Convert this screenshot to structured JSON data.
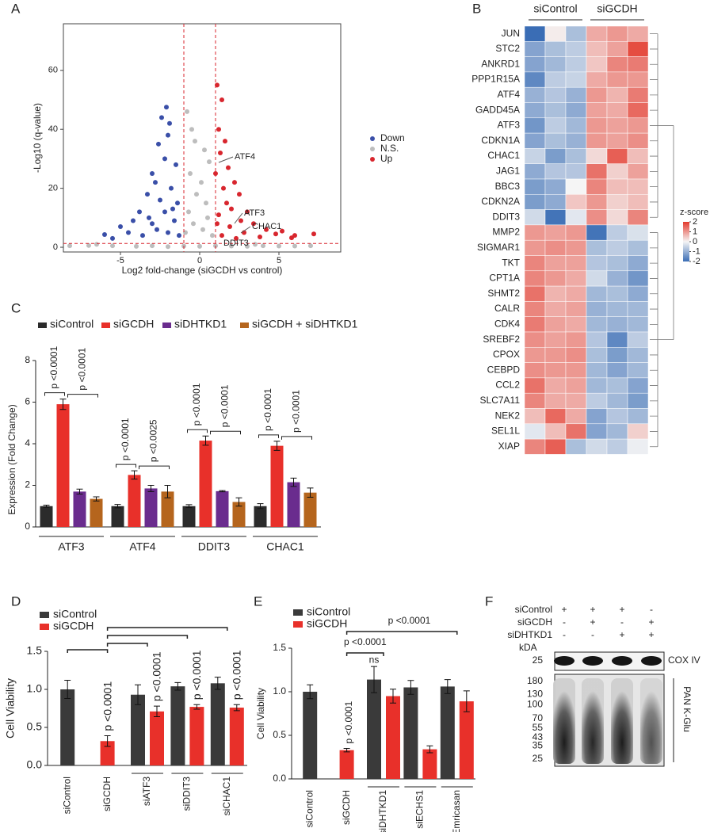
{
  "chart_data": [
    {
      "panel": "A",
      "type": "scatter",
      "xlabel": "Log2 fold-change (siGCDH vs control)",
      "ylabel": "-Log10 (q-value)",
      "xlim": [
        -8.6,
        8.9
      ],
      "ylim": [
        -1.6,
        75.8
      ],
      "xticks": [
        -5,
        0,
        5
      ],
      "yticks": [
        0,
        20,
        40,
        60
      ],
      "vlines": [
        -1,
        1
      ],
      "hline": 1.3,
      "series": [
        {
          "name": "Down",
          "color": "#3a4fa8",
          "x": [
            -2.1,
            -2.4,
            -1.9,
            -2.0,
            -2.6,
            -2.2,
            -1.5,
            -3.0,
            -2.8,
            -1.8,
            -3.3,
            -2.5,
            -1.4,
            -3.8,
            -2.2,
            -4.2,
            -3.0,
            -1.6,
            -5.0,
            -6.0,
            -4.5,
            -3.6,
            -2.0,
            -5.5,
            -1.3,
            -2.7,
            -3.2,
            -1.7
          ],
          "values": [
            47.5,
            44,
            42,
            38,
            35,
            30,
            28,
            25,
            22,
            20,
            18,
            16,
            15,
            12,
            12,
            9,
            8,
            9,
            7,
            4.3,
            5,
            4,
            5,
            3,
            4,
            6,
            10,
            13
          ]
        },
        {
          "name": "N.S.",
          "color": "#bdbdbd",
          "x": [
            -0.8,
            -0.5,
            -0.3,
            0.3,
            0.6,
            -0.6,
            0.1,
            -0.2,
            0.4,
            -0.7,
            0.5,
            -0.4,
            0.2,
            -0.9,
            0.8,
            -8.2,
            -7,
            -5.5,
            -4,
            -3,
            -2,
            -1,
            0,
            1,
            2,
            3,
            4,
            5,
            6,
            7,
            -6.5,
            3.5
          ],
          "values": [
            46,
            40,
            36,
            33,
            29,
            25,
            22,
            18,
            15,
            12,
            10,
            8,
            6,
            5,
            4,
            0.5,
            0.6,
            0.5,
            0.3,
            0.5,
            0.2,
            0.4,
            0.3,
            0.5,
            0.4,
            0.3,
            0.5,
            0.4,
            0.4,
            0.5,
            1.0,
            1.0
          ]
        },
        {
          "name": "Up",
          "color": "#d8262e",
          "x": [
            1.1,
            1.4,
            1.2,
            1.6,
            1.3,
            1.8,
            1.0,
            2.2,
            1.5,
            2.5,
            1.7,
            2.0,
            3.0,
            1.2,
            2.6,
            3.4,
            1.9,
            4.2,
            2.8,
            5.2,
            4.8,
            6.0,
            7.2,
            3.8,
            1.4,
            2.3,
            5.8,
            1.1
          ],
          "values": [
            55,
            50,
            40,
            36,
            32,
            27,
            25,
            22,
            20,
            18,
            15,
            13,
            12,
            11,
            9,
            8,
            7,
            6,
            5,
            5.5,
            4.5,
            4,
            4.5,
            3.5,
            4,
            3,
            3.2,
            8
          ]
        }
      ],
      "annotations": [
        "ATF4",
        "ATF3",
        "CHAC1",
        "DDIT3"
      ]
    },
    {
      "panel": "B",
      "type": "heatmap",
      "column_groups": [
        "siControl",
        "siGCDH"
      ],
      "rows": [
        "JUN",
        "STC2",
        "ANKRD1",
        "PPP1R15A",
        "ATF4",
        "GADD45A",
        "ATF3",
        "CDKN1A",
        "CHAC1",
        "JAG1",
        "BBC3",
        "CDKN2A",
        "DDIT3",
        "MMP2",
        "SIGMAR1",
        "TKT",
        "CPT1A",
        "SHMT2",
        "CALR",
        "CDK4",
        "SREBF2",
        "CPOX",
        "CEBPD",
        "CCL2",
        "SLC7A11",
        "NEK2",
        "SEL1L",
        "XIAP"
      ],
      "values": [
        [
          -2,
          0.1,
          -0.8,
          0.8,
          1.0,
          0.8
        ],
        [
          -1.2,
          -0.8,
          -0.6,
          0.6,
          0.9,
          1.8
        ],
        [
          -1.2,
          -0.9,
          -0.6,
          0.5,
          1.2,
          1.3
        ],
        [
          -1.6,
          -0.6,
          -0.5,
          0.8,
          1.0,
          1.0
        ],
        [
          -1.0,
          -0.7,
          -1.0,
          1.0,
          0.7,
          1.3
        ],
        [
          -1.1,
          -0.8,
          -1.1,
          0.9,
          0.8,
          1.5
        ],
        [
          -1.4,
          -0.6,
          -0.9,
          1.0,
          0.9,
          1.0
        ],
        [
          -1.2,
          -0.8,
          -1.0,
          1.0,
          0.9,
          1.1
        ],
        [
          -0.5,
          -1.3,
          -0.8,
          0.3,
          1.6,
          0.6
        ],
        [
          -1.1,
          -0.7,
          -0.7,
          1.4,
          0.4,
          0.9
        ],
        [
          -1.3,
          -1.1,
          0.0,
          1.2,
          0.6,
          0.6
        ],
        [
          -1.3,
          -1.1,
          0.5,
          1.0,
          0.4,
          0.6
        ],
        [
          -0.4,
          -1.9,
          -0.2,
          1.1,
          0.3,
          1.2
        ],
        [
          1.0,
          0.9,
          1.0,
          -1.9,
          -0.6,
          -0.3
        ],
        [
          1.0,
          1.1,
          1.0,
          -0.8,
          -0.6,
          -0.8
        ],
        [
          1.2,
          0.9,
          0.9,
          -0.7,
          -0.8,
          -1.1
        ],
        [
          1.2,
          1.0,
          0.8,
          -0.4,
          -1.0,
          -1.4
        ],
        [
          1.4,
          0.7,
          0.8,
          -0.9,
          -0.8,
          -1.1
        ],
        [
          1.2,
          0.8,
          0.9,
          -1.0,
          -0.9,
          -0.9
        ],
        [
          1.3,
          0.9,
          0.8,
          -0.9,
          -1.0,
          -0.9
        ],
        [
          1.1,
          0.9,
          1.0,
          -0.7,
          -1.6,
          -0.6
        ],
        [
          1.0,
          1.0,
          1.1,
          -0.8,
          -1.3,
          -0.9
        ],
        [
          1.1,
          1.0,
          1.0,
          -0.9,
          -1.2,
          -0.9
        ],
        [
          1.4,
          0.8,
          0.9,
          -0.9,
          -0.8,
          -1.2
        ],
        [
          1.2,
          0.8,
          0.8,
          -0.6,
          -0.9,
          -1.3
        ],
        [
          0.6,
          1.5,
          0.8,
          -1.2,
          -0.7,
          -0.9
        ],
        [
          -0.2,
          0.6,
          1.4,
          -1.2,
          -0.9,
          0.4
        ],
        [
          1.2,
          1.6,
          -0.8,
          -0.4,
          -0.6,
          -0.1
        ]
      ],
      "clim": [
        -2,
        2
      ],
      "colors": [
        "#3a6db5",
        "#f5f5f5",
        "#e33a2d"
      ],
      "colorbar_label": "z-score",
      "colorbar_ticks": [
        2,
        1,
        0,
        -1,
        -2
      ]
    },
    {
      "panel": "C",
      "type": "grouped-bar",
      "ylabel": "Expression (Fold Change)",
      "categories": [
        "ATF3",
        "ATF4",
        "DDIT3",
        "CHAC1"
      ],
      "ylim": [
        0,
        8
      ],
      "yticks": [
        0,
        2,
        4,
        6,
        8
      ],
      "series": [
        {
          "name": "siControl",
          "color": "#2b2b2b",
          "values": [
            1.0,
            1.0,
            1.0,
            1.0
          ],
          "errors": [
            0.05,
            0.08,
            0.07,
            0.12
          ]
        },
        {
          "name": "siGCDH",
          "color": "#e8302a",
          "values": [
            5.9,
            2.5,
            4.15,
            3.9
          ],
          "errors": [
            0.25,
            0.2,
            0.22,
            0.22
          ]
        },
        {
          "name": "siDHTKD1",
          "color": "#6a2c8e",
          "values": [
            1.7,
            1.85,
            1.72,
            2.15
          ],
          "errors": [
            0.12,
            0.15,
            0.03,
            0.2
          ]
        },
        {
          "name": "siGCDH + siDHTKD1",
          "color": "#b5651d",
          "values": [
            1.35,
            1.7,
            1.2,
            1.65
          ],
          "errors": [
            0.1,
            0.3,
            0.2,
            0.22
          ]
        }
      ],
      "annotations": [
        "p <0.0001",
        "p <0.0001",
        "p <0.0001",
        "p <0.0025",
        "p <0.0001",
        "p <0.0001",
        "p <0.0001",
        "p <0.0001"
      ]
    },
    {
      "panel": "D",
      "type": "bar",
      "ylabel": "Cell Viability",
      "categories": [
        "siControl",
        "siGCDH",
        "siATF3",
        "siDDIT3",
        "siCHAC1"
      ],
      "ylim": [
        0,
        1.5
      ],
      "yticks": [
        {
          "value": 0,
          "label": "0.0"
        },
        0.5,
        {
          "value": 1,
          "label": "1.0"
        },
        1.5
      ],
      "series": [
        {
          "name": "siControl",
          "color": "#3a3a3a",
          "values": [
            1.0,
            null,
            0.93,
            1.04,
            1.08
          ],
          "errors": [
            0.12,
            null,
            0.13,
            0.05,
            0.08
          ]
        },
        {
          "name": "siGCDH",
          "color": "#e8302a",
          "values": [
            null,
            0.32,
            0.71,
            0.77,
            0.76
          ],
          "errors": [
            null,
            0.07,
            0.07,
            0.03,
            0.04
          ]
        }
      ],
      "annotations": [
        "p <0.0001",
        "p <0.0001",
        "p <0.0001",
        "p <0.0001"
      ]
    },
    {
      "panel": "E",
      "type": "bar",
      "ylabel": "Cell Viability",
      "categories": [
        "siControl",
        "siGCDH",
        "siDHTKD1",
        "siECHS1",
        "Emricasan"
      ],
      "ylim": [
        0,
        1.5
      ],
      "yticks": [
        {
          "value": 0,
          "label": "0.0"
        },
        0.5,
        {
          "value": 1,
          "label": "1.0"
        },
        1.5
      ],
      "series": [
        {
          "name": "siControl",
          "color": "#3a3a3a",
          "values": [
            1.0,
            null,
            1.14,
            1.05,
            1.06
          ],
          "errors": [
            0.08,
            null,
            0.15,
            0.08,
            0.08
          ]
        },
        {
          "name": "siGCDH",
          "color": "#e8302a",
          "values": [
            null,
            0.33,
            0.95,
            0.34,
            0.89
          ],
          "errors": [
            null,
            0.02,
            0.08,
            0.04,
            0.12
          ]
        }
      ],
      "annotations": [
        "p <0.0001",
        "p <0.0001",
        "ns",
        "p <0.0001"
      ]
    },
    {
      "panel": "F",
      "type": "blot",
      "conditions": [
        {
          "label": "siControl",
          "lanes": [
            "+",
            "+",
            "+",
            "-"
          ]
        },
        {
          "label": "siGCDH",
          "lanes": [
            "-",
            "+",
            "-",
            "+"
          ]
        },
        {
          "label": "siDHTKD1",
          "lanes": [
            "-",
            "-",
            "+",
            "+"
          ]
        }
      ],
      "unit": "kDA",
      "loading_control": {
        "label": "COX IV",
        "marker": 25
      },
      "blot": {
        "label": "PAN K-Glu",
        "markers": [
          180,
          130,
          100,
          70,
          55,
          43,
          35,
          25
        ]
      }
    }
  ]
}
